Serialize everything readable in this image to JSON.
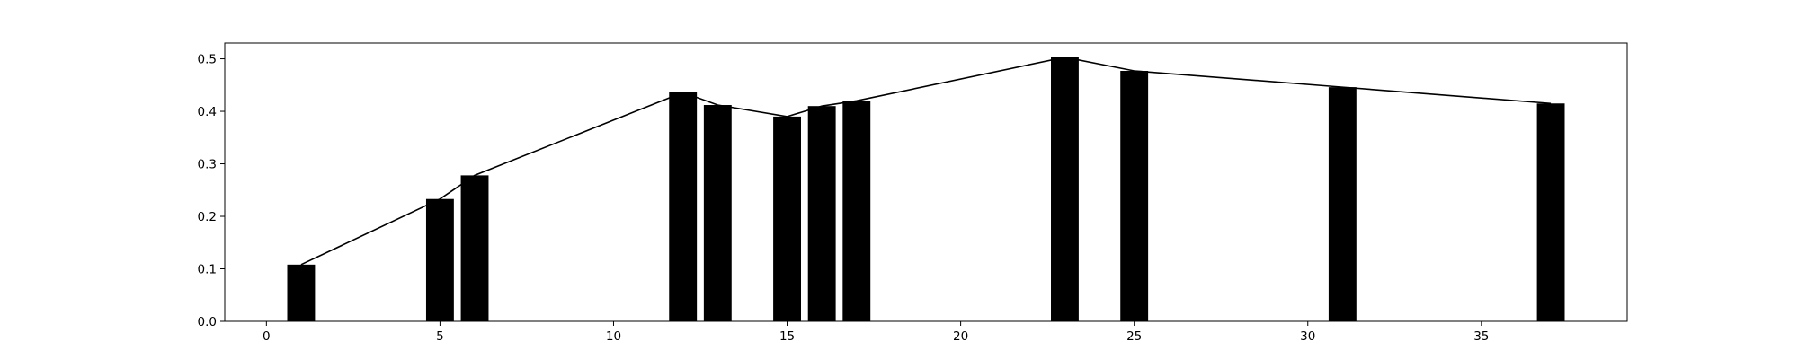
{
  "chart_data": {
    "type": "bar",
    "title": "",
    "xlabel": "",
    "ylabel": "",
    "grid": false,
    "xlim": [
      -1.2,
      39.2
    ],
    "ylim": [
      0,
      0.53
    ],
    "xticks": [
      0,
      5,
      10,
      15,
      20,
      25,
      30,
      35
    ],
    "yticks": [
      0.0,
      0.1,
      0.2,
      0.3,
      0.4,
      0.5
    ],
    "xtick_labels": [
      "0",
      "5",
      "10",
      "15",
      "20",
      "25",
      "30",
      "35"
    ],
    "ytick_labels": [
      "0.0",
      "0.1",
      "0.2",
      "0.3",
      "0.4",
      "0.5"
    ],
    "bar_color": "#000000",
    "line_color": "#000000",
    "bars": {
      "x": [
        1,
        5,
        6,
        12,
        13,
        15,
        16,
        17,
        23,
        25,
        31,
        37
      ],
      "values": [
        0.108,
        0.233,
        0.278,
        0.436,
        0.412,
        0.39,
        0.41,
        0.42,
        0.503,
        0.477,
        0.446,
        0.415
      ]
    },
    "line": {
      "x": [
        1,
        5,
        6,
        12,
        13,
        15,
        16,
        17,
        23,
        25,
        31,
        37
      ],
      "values": [
        0.108,
        0.233,
        0.278,
        0.436,
        0.412,
        0.39,
        0.41,
        0.42,
        0.503,
        0.477,
        0.446,
        0.415
      ]
    }
  }
}
